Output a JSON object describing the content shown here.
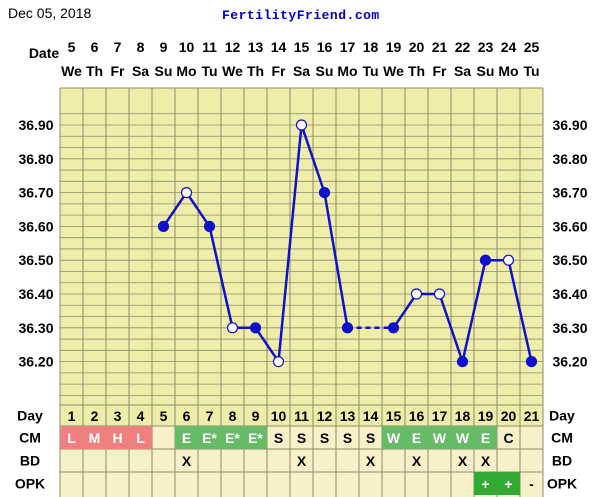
{
  "header": {
    "date": "Dec 05, 2018",
    "site": "FertilityFriend.com"
  },
  "labels": {
    "date": "Date",
    "day": "Day",
    "cm": "CM",
    "bd": "BD",
    "opk": "OPK"
  },
  "colors": {
    "background": "#eeeeaa",
    "grid": "#8c8c6a",
    "line": "#1010cc",
    "cm_red": "#f08080",
    "cm_green": "#66bb66",
    "opk_green": "#33aa33"
  },
  "chart_data": {
    "type": "line",
    "y_ticks": [
      "36.90",
      "36.80",
      "36.70",
      "36.60",
      "36.50",
      "36.40",
      "36.30",
      "36.20"
    ],
    "ylim": [
      36.1,
      36.96
    ],
    "dates": [
      "5",
      "6",
      "7",
      "8",
      "9",
      "10",
      "11",
      "12",
      "13",
      "14",
      "15",
      "16",
      "17",
      "18",
      "19",
      "20",
      "21",
      "22",
      "23",
      "24",
      "25"
    ],
    "weekdays": [
      "We",
      "Th",
      "Fr",
      "Sa",
      "Su",
      "Mo",
      "Tu",
      "We",
      "Th",
      "Fr",
      "Sa",
      "Su",
      "Mo",
      "Tu",
      "We",
      "Th",
      "Fr",
      "Sa",
      "Su",
      "Mo",
      "Tu"
    ],
    "cycle_days": [
      "1",
      "2",
      "3",
      "4",
      "5",
      "6",
      "7",
      "8",
      "9",
      "10",
      "11",
      "12",
      "13",
      "14",
      "15",
      "16",
      "17",
      "18",
      "19",
      "20",
      "21"
    ],
    "temperatures": [
      null,
      null,
      null,
      null,
      36.6,
      36.7,
      36.6,
      36.3,
      36.3,
      36.2,
      36.9,
      36.7,
      36.3,
      null,
      36.3,
      36.4,
      36.4,
      36.2,
      36.5,
      36.5,
      36.2
    ],
    "point_style": [
      "",
      "",
      "",
      "",
      "filled",
      "open",
      "filled",
      "open",
      "filled",
      "open",
      "open",
      "filled",
      "filled",
      "",
      "filled",
      "open",
      "open",
      "filled",
      "filled",
      "open",
      "filled"
    ],
    "dashed_gap": [
      12,
      14
    ],
    "cervical_mucus": [
      "L",
      "M",
      "H",
      "L",
      "",
      "E",
      "E*",
      "E*",
      "E*",
      "S",
      "S",
      "S",
      "S",
      "S",
      "W",
      "E",
      "W",
      "W",
      "E",
      "C",
      ""
    ],
    "cm_colors": [
      "red",
      "red",
      "red",
      "red",
      "",
      "green",
      "green",
      "green",
      "green",
      "",
      "",
      "",
      "",
      "",
      "green",
      "green",
      "green",
      "green",
      "green",
      "",
      ""
    ],
    "bd": [
      "",
      "",
      "",
      "",
      "",
      "X",
      "",
      "",
      "",
      "",
      "X",
      "",
      "",
      "X",
      "",
      "X",
      "",
      "X",
      "X",
      "",
      ""
    ],
    "opk": [
      "",
      "",
      "",
      "",
      "",
      "",
      "",
      "",
      "",
      "",
      "",
      "",
      "",
      "",
      "",
      "",
      "",
      "",
      "+",
      "+",
      "-"
    ],
    "opk_colors": [
      "",
      "",
      "",
      "",
      "",
      "",
      "",
      "",
      "",
      "",
      "",
      "",
      "",
      "",
      "",
      "",
      "",
      "",
      "green",
      "green",
      ""
    ]
  }
}
